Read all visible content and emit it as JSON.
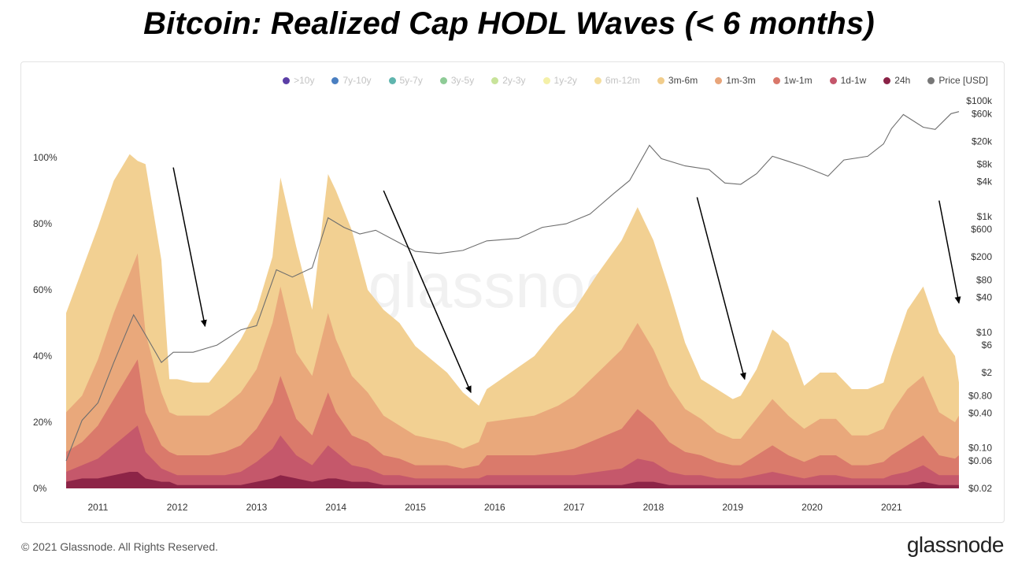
{
  "title": "Bitcoin: Realized Cap HODL Waves (< 6 months)",
  "footer": {
    "copyright": "© 2021 Glassnode. All Rights Reserved.",
    "logo": "glassnode",
    "watermark": "glassnode"
  },
  "legend": [
    {
      "label": ">10y",
      "color": "#5b3ea6",
      "active": false
    },
    {
      "label": "7y-10y",
      "color": "#4a7fc1",
      "active": false
    },
    {
      "label": "5y-7y",
      "color": "#5fb5ae",
      "active": false
    },
    {
      "label": "3y-5y",
      "color": "#8ecb96",
      "active": false
    },
    {
      "label": "2y-3y",
      "color": "#c8e39a",
      "active": false
    },
    {
      "label": "1y-2y",
      "color": "#f4f0a8",
      "active": false
    },
    {
      "label": "6m-12m",
      "color": "#f5de9c",
      "active": false
    },
    {
      "label": "3m-6m",
      "color": "#f1cd8c",
      "active": true
    },
    {
      "label": "1m-3m",
      "color": "#e8a57a",
      "active": true
    },
    {
      "label": "1w-1m",
      "color": "#d9776a",
      "active": true
    },
    {
      "label": "1d-1w",
      "color": "#c4566b",
      "active": true
    },
    {
      "label": "24h",
      "color": "#8a2246",
      "active": true
    },
    {
      "label": "Price [USD]",
      "color": "#777777",
      "active": true
    }
  ],
  "chart_data": {
    "type": "area",
    "stacked": true,
    "x": [
      2010.6,
      2010.8,
      2011.0,
      2011.2,
      2011.4,
      2011.5,
      2011.6,
      2011.8,
      2011.9,
      2012.0,
      2012.2,
      2012.4,
      2012.6,
      2012.8,
      2013.0,
      2013.2,
      2013.3,
      2013.5,
      2013.7,
      2013.9,
      2014.0,
      2014.2,
      2014.4,
      2014.6,
      2014.8,
      2015.0,
      2015.2,
      2015.4,
      2015.6,
      2015.8,
      2015.9,
      2016.2,
      2016.5,
      2016.8,
      2017.0,
      2017.3,
      2017.6,
      2017.8,
      2018.0,
      2018.2,
      2018.4,
      2018.6,
      2018.8,
      2019.0,
      2019.1,
      2019.3,
      2019.5,
      2019.7,
      2019.9,
      2020.1,
      2020.3,
      2020.5,
      2020.7,
      2020.9,
      2021.0,
      2021.2,
      2021.4,
      2021.6,
      2021.8,
      2021.85
    ],
    "x_ticks": [
      "2011",
      "2012",
      "2013",
      "2014",
      "2015",
      "2016",
      "2017",
      "2018",
      "2019",
      "2020",
      "2021"
    ],
    "series": [
      {
        "name": "24h",
        "color": "#8a2246",
        "values": [
          2,
          3,
          3,
          4,
          5,
          5,
          3,
          2,
          2,
          1,
          1,
          1,
          1,
          1,
          2,
          3,
          4,
          3,
          2,
          3,
          3,
          2,
          2,
          1,
          1,
          1,
          1,
          1,
          1,
          1,
          1,
          1,
          1,
          1,
          1,
          1,
          1,
          2,
          2,
          1,
          1,
          1,
          1,
          1,
          1,
          1,
          1,
          1,
          1,
          1,
          1,
          1,
          1,
          1,
          1,
          1,
          2,
          1,
          1,
          1
        ]
      },
      {
        "name": "1d-1w",
        "color": "#c4566b",
        "values": [
          3,
          4,
          6,
          9,
          12,
          14,
          8,
          4,
          3,
          3,
          3,
          3,
          3,
          4,
          6,
          9,
          12,
          7,
          5,
          10,
          8,
          5,
          4,
          3,
          3,
          2,
          2,
          2,
          2,
          2,
          3,
          3,
          3,
          3,
          3,
          4,
          5,
          7,
          6,
          4,
          3,
          3,
          2,
          2,
          2,
          3,
          4,
          3,
          2,
          3,
          3,
          2,
          2,
          2,
          3,
          4,
          5,
          3,
          3,
          3
        ]
      },
      {
        "name": "1w-1m",
        "color": "#d9776a",
        "values": [
          6,
          7,
          10,
          14,
          18,
          20,
          12,
          7,
          6,
          6,
          6,
          6,
          7,
          8,
          10,
          14,
          18,
          11,
          9,
          16,
          12,
          9,
          8,
          6,
          5,
          4,
          4,
          4,
          3,
          4,
          6,
          6,
          6,
          7,
          8,
          10,
          12,
          15,
          12,
          9,
          7,
          6,
          5,
          4,
          4,
          6,
          8,
          6,
          5,
          6,
          6,
          4,
          4,
          5,
          6,
          8,
          9,
          6,
          5,
          6
        ]
      },
      {
        "name": "1m-3m",
        "color": "#e8a57a",
        "values": [
          12,
          14,
          20,
          26,
          30,
          32,
          24,
          16,
          12,
          12,
          12,
          12,
          14,
          16,
          18,
          24,
          27,
          20,
          18,
          24,
          22,
          18,
          15,
          12,
          10,
          9,
          8,
          7,
          6,
          7,
          10,
          11,
          12,
          14,
          16,
          20,
          24,
          26,
          22,
          17,
          13,
          11,
          9,
          8,
          8,
          11,
          14,
          12,
          10,
          11,
          11,
          9,
          9,
          10,
          13,
          17,
          18,
          13,
          11,
          12
        ]
      },
      {
        "name": "3m-6m",
        "color": "#f1cd8c",
        "values": [
          30,
          38,
          40,
          40,
          36,
          28,
          51,
          40,
          10,
          11,
          10,
          10,
          13,
          16,
          18,
          20,
          33,
          32,
          20,
          42,
          45,
          44,
          31,
          32,
          31,
          27,
          24,
          21,
          17,
          11,
          10,
          14,
          18,
          24,
          26,
          30,
          33,
          35,
          33,
          29,
          20,
          12,
          13,
          12,
          13,
          15,
          21,
          22,
          13,
          14,
          14,
          14,
          14,
          14,
          17,
          24,
          27,
          24,
          20,
          10
        ]
      }
    ],
    "price": [
      [
        2010.6,
        0.06
      ],
      [
        2010.8,
        0.3
      ],
      [
        2011.0,
        0.6
      ],
      [
        2011.2,
        3
      ],
      [
        2011.45,
        20
      ],
      [
        2011.6,
        9
      ],
      [
        2011.8,
        3
      ],
      [
        2011.95,
        4.5
      ],
      [
        2012.2,
        4.5
      ],
      [
        2012.5,
        6
      ],
      [
        2012.8,
        11
      ],
      [
        2013.0,
        13
      ],
      [
        2013.25,
        120
      ],
      [
        2013.45,
        90
      ],
      [
        2013.7,
        130
      ],
      [
        2013.9,
        950
      ],
      [
        2014.1,
        650
      ],
      [
        2014.3,
        500
      ],
      [
        2014.5,
        580
      ],
      [
        2014.8,
        350
      ],
      [
        2015.0,
        250
      ],
      [
        2015.3,
        230
      ],
      [
        2015.6,
        260
      ],
      [
        2015.9,
        380
      ],
      [
        2016.3,
        420
      ],
      [
        2016.6,
        650
      ],
      [
        2016.9,
        750
      ],
      [
        2017.2,
        1100
      ],
      [
        2017.5,
        2500
      ],
      [
        2017.7,
        4200
      ],
      [
        2017.95,
        17000
      ],
      [
        2018.1,
        10000
      ],
      [
        2018.4,
        7500
      ],
      [
        2018.7,
        6500
      ],
      [
        2018.9,
        3800
      ],
      [
        2019.1,
        3600
      ],
      [
        2019.3,
        5500
      ],
      [
        2019.5,
        11000
      ],
      [
        2019.7,
        9000
      ],
      [
        2019.9,
        7300
      ],
      [
        2020.2,
        5000
      ],
      [
        2020.4,
        9500
      ],
      [
        2020.7,
        11000
      ],
      [
        2020.9,
        18000
      ],
      [
        2021.0,
        33000
      ],
      [
        2021.15,
        58000
      ],
      [
        2021.4,
        35000
      ],
      [
        2021.55,
        32000
      ],
      [
        2021.75,
        60000
      ],
      [
        2021.85,
        65000
      ]
    ],
    "y_left_ticks": [
      "0%",
      "20%",
      "40%",
      "60%",
      "80%",
      "100%"
    ],
    "y_right_ticks": [
      "$100k",
      "$60k",
      "$20k",
      "$8k",
      "$4k",
      "$1k",
      "$600",
      "$200",
      "$80",
      "$40",
      "$10",
      "$6",
      "$2",
      "$0.80",
      "$0.40",
      "$0.10",
      "$0.06",
      "$0.02"
    ],
    "y_right_scale": "log",
    "annotations": [
      {
        "type": "arrow",
        "from": [
          2011.95,
          97
        ],
        "to": [
          2012.35,
          49
        ]
      },
      {
        "type": "arrow",
        "from": [
          2014.6,
          90
        ],
        "to": [
          2015.7,
          29
        ]
      },
      {
        "type": "arrow",
        "from": [
          2018.55,
          88
        ],
        "to": [
          2019.15,
          33
        ]
      },
      {
        "type": "arrow",
        "from": [
          2021.6,
          87
        ],
        "to": [
          2021.85,
          56
        ]
      }
    ],
    "ylim": [
      0,
      100
    ],
    "xlim": [
      2010.55,
      2021.86
    ]
  }
}
